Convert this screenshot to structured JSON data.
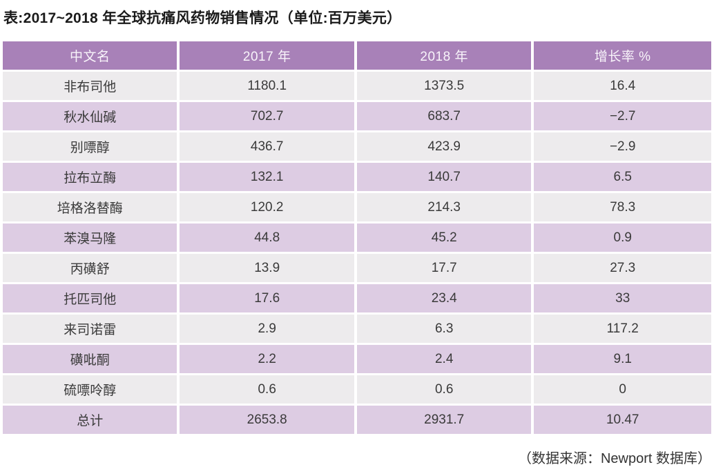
{
  "page": {
    "title": "表:2017~2018 年全球抗痛风药物销售情况（单位:百万美元）",
    "source": "（数据来源：Newport 数据库）"
  },
  "table": {
    "headers": [
      "中文名",
      "2017 年",
      "2018 年",
      "增长率 %"
    ],
    "rows": [
      [
        "非布司他",
        "1180.1",
        "1373.5",
        "16.4"
      ],
      [
        "秋水仙碱",
        "702.7",
        "683.7",
        "−2.7"
      ],
      [
        "别嘌醇",
        "436.7",
        "423.9",
        "−2.9"
      ],
      [
        "拉布立酶",
        "132.1",
        "140.7",
        "6.5"
      ],
      [
        "培格洛替酶",
        "120.2",
        "214.3",
        "78.3"
      ],
      [
        "苯溴马隆",
        "44.8",
        "45.2",
        "0.9"
      ],
      [
        "丙磺舒",
        "13.9",
        "17.7",
        "27.3"
      ],
      [
        "托匹司他",
        "17.6",
        "23.4",
        "33"
      ],
      [
        "来司诺雷",
        "2.9",
        "6.3",
        "117.2"
      ],
      [
        "磺吡酮",
        "2.2",
        "2.4",
        "9.1"
      ],
      [
        "硫嘌呤醇",
        "0.6",
        "0.6",
        "0"
      ],
      [
        "总计",
        "2653.8",
        "2931.7",
        "10.47"
      ]
    ]
  },
  "colors": {
    "header_bg": "#a881b8",
    "header_text": "#f8f4fa",
    "row_light": "#edebed",
    "row_lavender": "#ddcce3",
    "body_text": "#3a3a3a"
  },
  "chart_data": {
    "type": "table",
    "title": "表:2017~2018 年全球抗痛风药物销售情况",
    "unit": "百万美元",
    "columns": [
      "中文名",
      "2017 年",
      "2018 年",
      "增长率 %"
    ],
    "rows": [
      {
        "name": "非布司他",
        "sales_2017": 1180.1,
        "sales_2018": 1373.5,
        "growth_pct": 16.4
      },
      {
        "name": "秋水仙碱",
        "sales_2017": 702.7,
        "sales_2018": 683.7,
        "growth_pct": -2.7
      },
      {
        "name": "别嘌醇",
        "sales_2017": 436.7,
        "sales_2018": 423.9,
        "growth_pct": -2.9
      },
      {
        "name": "拉布立酶",
        "sales_2017": 132.1,
        "sales_2018": 140.7,
        "growth_pct": 6.5
      },
      {
        "name": "培格洛替酶",
        "sales_2017": 120.2,
        "sales_2018": 214.3,
        "growth_pct": 78.3
      },
      {
        "name": "苯溴马隆",
        "sales_2017": 44.8,
        "sales_2018": 45.2,
        "growth_pct": 0.9
      },
      {
        "name": "丙磺舒",
        "sales_2017": 13.9,
        "sales_2018": 17.7,
        "growth_pct": 27.3
      },
      {
        "name": "托匹司他",
        "sales_2017": 17.6,
        "sales_2018": 23.4,
        "growth_pct": 33
      },
      {
        "name": "来司诺雷",
        "sales_2017": 2.9,
        "sales_2018": 6.3,
        "growth_pct": 117.2
      },
      {
        "name": "磺吡酮",
        "sales_2017": 2.2,
        "sales_2018": 2.4,
        "growth_pct": 9.1
      },
      {
        "name": "硫嘌呤醇",
        "sales_2017": 0.6,
        "sales_2018": 0.6,
        "growth_pct": 0
      },
      {
        "name": "总计",
        "sales_2017": 2653.8,
        "sales_2018": 2931.7,
        "growth_pct": 10.47
      }
    ],
    "source": "Newport 数据库"
  }
}
